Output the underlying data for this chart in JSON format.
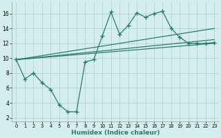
{
  "xlabel": "Humidex (Indice chaleur)",
  "ylabel": "",
  "bg_color": "#d4eeee",
  "line_color": "#2a7a6a",
  "grid_color": "#aed4d4",
  "xlim": [
    -0.5,
    23.5
  ],
  "ylim": [
    1.5,
    17.5
  ],
  "yticks": [
    2,
    4,
    6,
    8,
    10,
    12,
    14,
    16
  ],
  "xticks": [
    0,
    1,
    2,
    3,
    4,
    5,
    6,
    7,
    8,
    9,
    10,
    11,
    12,
    13,
    14,
    15,
    16,
    17,
    18,
    19,
    20,
    21,
    22,
    23
  ],
  "line1_x": [
    0,
    1,
    2,
    3,
    4,
    5,
    6,
    7,
    8,
    9,
    10,
    11,
    12,
    13,
    14,
    15,
    16,
    17,
    18,
    19,
    20,
    21,
    22,
    23
  ],
  "line1_y": [
    9.8,
    7.2,
    8.0,
    6.7,
    5.8,
    3.7,
    2.8,
    2.8,
    9.5,
    9.8,
    13.0,
    16.2,
    13.2,
    14.4,
    16.1,
    15.5,
    16.0,
    16.3,
    14.0,
    12.8,
    12.0,
    12.0,
    12.0,
    12.1
  ],
  "line2_x": [
    0,
    23
  ],
  "line2_y": [
    9.8,
    14.0
  ],
  "line3_x": [
    0,
    23
  ],
  "line3_y": [
    9.8,
    12.5
  ],
  "line4_x": [
    0,
    23
  ],
  "line4_y": [
    9.8,
    12.0
  ],
  "marker": "+",
  "markersize": 4.0,
  "linewidth": 0.9
}
